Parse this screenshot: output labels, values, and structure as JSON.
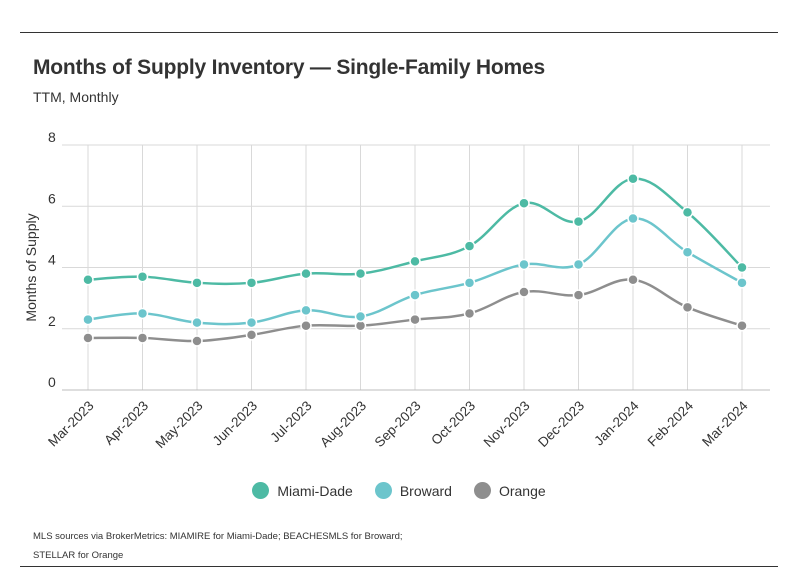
{
  "chart_data": {
    "type": "line",
    "title": "Months of Supply Inventory — Single-Family Homes",
    "subtitle": "TTM, Monthly",
    "ylabel": "Months of Supply",
    "xlabel": "",
    "ylim": [
      0,
      8
    ],
    "yticks": [
      0,
      2,
      4,
      6,
      8
    ],
    "categories": [
      "Mar-2023",
      "Apr-2023",
      "May-2023",
      "Jun-2023",
      "Jul-2023",
      "Aug-2023",
      "Sep-2023",
      "Oct-2023",
      "Nov-2023",
      "Dec-2023",
      "Jan-2024",
      "Feb-2024",
      "Mar-2024"
    ],
    "series": [
      {
        "name": "Miami-Dade",
        "color": "#4dbaa4",
        "values": [
          3.6,
          3.7,
          3.5,
          3.5,
          3.8,
          3.8,
          4.2,
          4.7,
          6.1,
          5.5,
          6.9,
          5.8,
          4.0
        ]
      },
      {
        "name": "Broward",
        "color": "#6cc5cc",
        "values": [
          2.3,
          2.5,
          2.2,
          2.2,
          2.6,
          2.4,
          3.1,
          3.5,
          4.1,
          4.1,
          5.6,
          4.5,
          3.5
        ]
      },
      {
        "name": "Orange",
        "color": "#8e8e8e",
        "values": [
          1.7,
          1.7,
          1.6,
          1.8,
          2.1,
          2.1,
          2.3,
          2.5,
          3.2,
          3.1,
          3.6,
          2.7,
          2.1
        ]
      }
    ],
    "grid": true,
    "legend": "bottom-center"
  },
  "footer": {
    "source_line1": "MLS sources via BrokerMetrics: MIAMIRE for Miami-Dade; BEACHESMLS for Broward;",
    "source_line2": "STELLAR for Orange"
  }
}
